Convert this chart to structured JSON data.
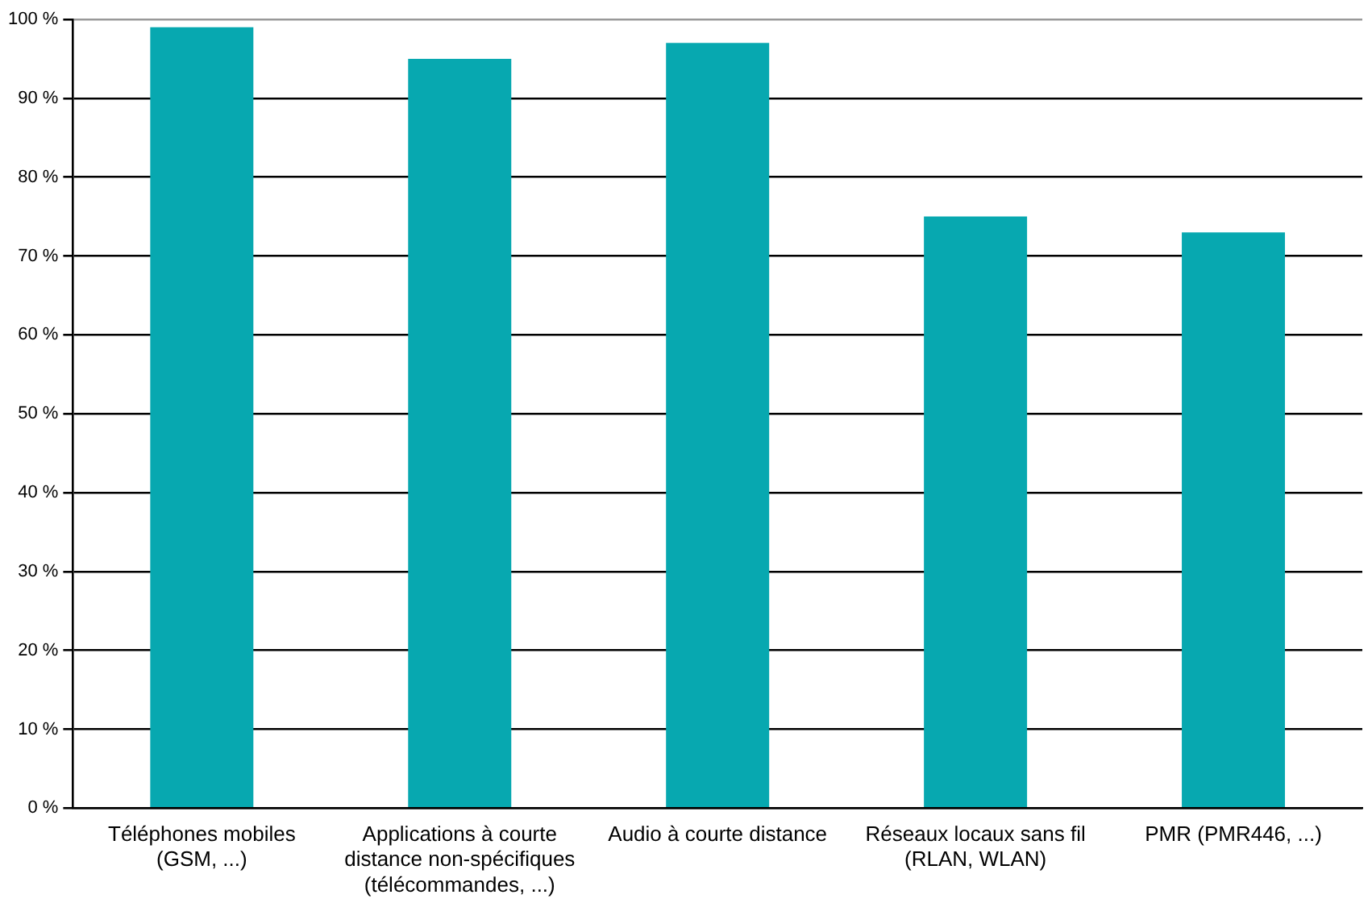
{
  "chart_data": {
    "type": "bar",
    "categories": [
      "Téléphones mobiles (GSM, ...)",
      "Applications à courte distance non-spécifiques (télécommandes, ...)",
      "Audio à courte distance",
      "Réseaux locaux sans fil (RLAN, WLAN)",
      "PMR (PMR446, ...)"
    ],
    "values": [
      99,
      95,
      97,
      75,
      73
    ],
    "color": "#07a8b0",
    "ylim": [
      0,
      100
    ],
    "yticks": [
      {
        "value": 0,
        "label": "0 %"
      },
      {
        "value": 10,
        "label": "10 %"
      },
      {
        "value": 20,
        "label": "20 %"
      },
      {
        "value": 30,
        "label": "30 %"
      },
      {
        "value": 40,
        "label": "40 %"
      },
      {
        "value": 50,
        "label": "50 %"
      },
      {
        "value": 60,
        "label": "60 %"
      },
      {
        "value": 70,
        "label": "70 %"
      },
      {
        "value": 80,
        "label": "80 %"
      },
      {
        "value": 90,
        "label": "90 %"
      },
      {
        "value": 100,
        "label": "100 %"
      }
    ],
    "grid": "y"
  }
}
